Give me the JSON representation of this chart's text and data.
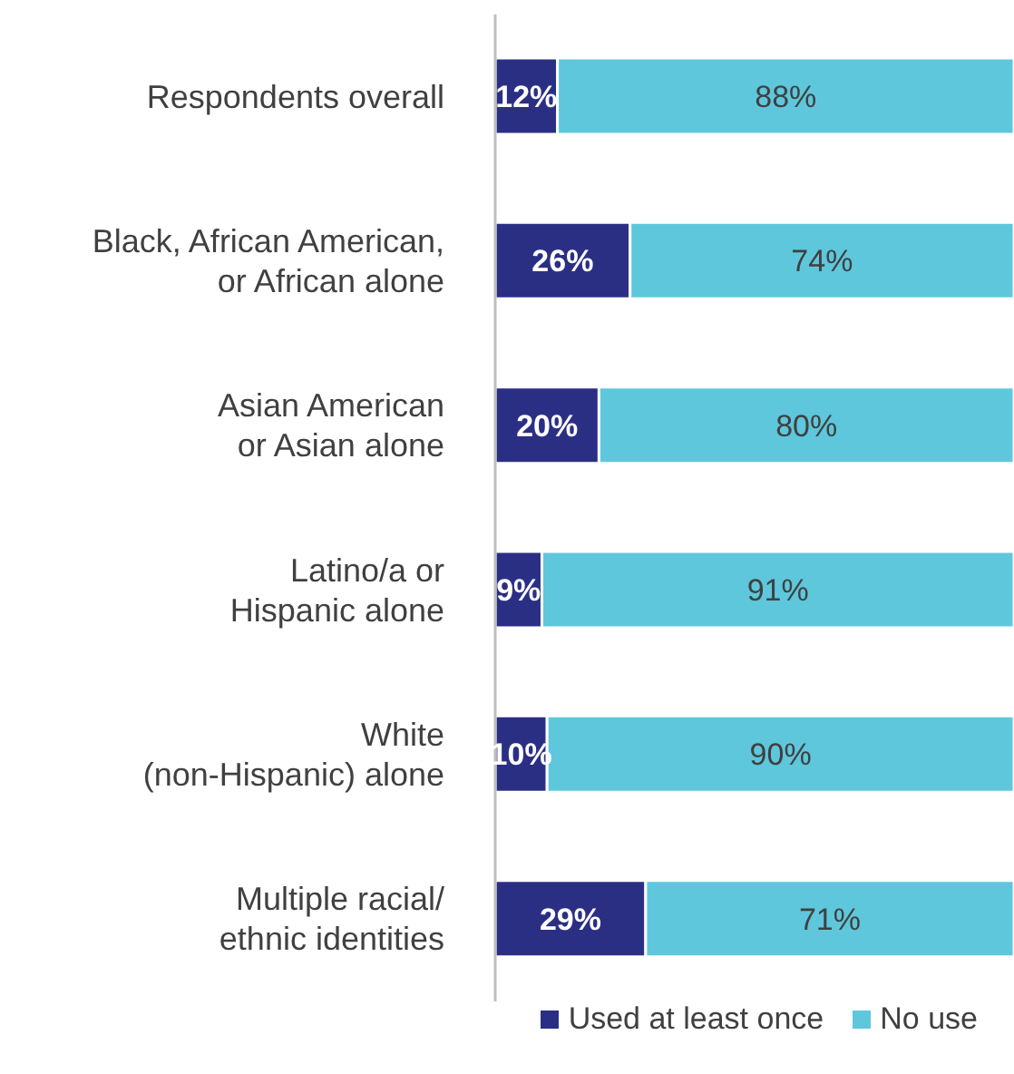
{
  "chart_data": {
    "type": "bar",
    "orientation": "horizontal",
    "stacked": true,
    "legend": "bottom",
    "grid": false,
    "tick_labels": "y",
    "categories": [
      "Respondents overall",
      "Black, African American,\nor African alone",
      "Asian American\nor Asian alone",
      "Latino/a or\nHispanic alone",
      "White\n(non-Hispanic) alone",
      "Multiple racial/\nethnic identities"
    ],
    "series": [
      {
        "name": "Used at least once",
        "color": "#2b2f84",
        "values": [
          12,
          26,
          20,
          9,
          10,
          29
        ],
        "value_labels": [
          "12%",
          "26%",
          "20%",
          "9%",
          "10%",
          "29%"
        ]
      },
      {
        "name": "No use",
        "color": "#5ec7dc",
        "values": [
          88,
          74,
          80,
          91,
          90,
          71
        ],
        "value_labels": [
          "88%",
          "74%",
          "80%",
          "91%",
          "90%",
          "71%"
        ]
      }
    ]
  }
}
